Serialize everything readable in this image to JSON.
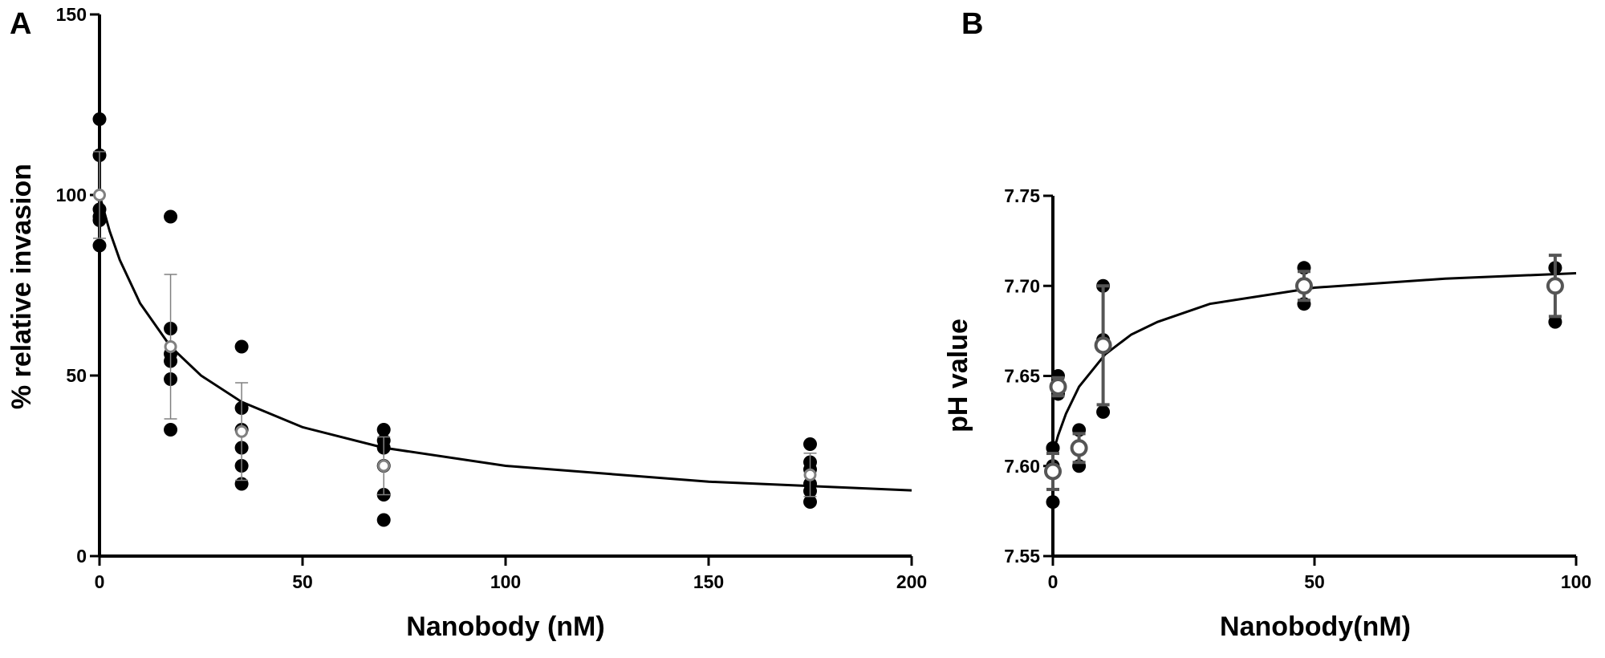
{
  "chart_data": [
    {
      "type": "scatter",
      "panel_label": "A",
      "xlabel": "Nanobody (nM)",
      "ylabel": "% relative invasion",
      "xlim": [
        0,
        200
      ],
      "ylim": [
        0,
        150
      ],
      "xticks": [
        0,
        50,
        100,
        150,
        200
      ],
      "yticks": [
        0,
        50,
        100,
        150
      ],
      "point_color": "#000000",
      "mean_color": "#808080",
      "fit_color": "#000000",
      "points": {
        "x": [
          0,
          0,
          0,
          0,
          0,
          0,
          17.5,
          17.5,
          17.5,
          17.5,
          17.5,
          17.5,
          35,
          35,
          35,
          35,
          35,
          35,
          70,
          70,
          70,
          70,
          70,
          70,
          175,
          175,
          175,
          175,
          175,
          175
        ],
        "y": [
          121,
          111,
          96,
          94,
          93,
          86,
          94,
          63,
          56,
          54,
          49,
          35,
          58,
          41,
          35,
          30,
          25,
          20,
          35,
          32,
          30,
          25,
          17,
          10,
          31,
          26,
          24,
          20,
          18,
          15
        ]
      },
      "means": {
        "x": [
          0,
          17.5,
          35,
          70,
          175
        ],
        "values": [
          100,
          58,
          34.5,
          25,
          22.5
        ],
        "errors": [
          12,
          20,
          13.5,
          8,
          6
        ]
      },
      "fit": {
        "x": [
          0,
          2.5,
          5,
          10,
          17.5,
          25,
          35,
          50,
          70,
          100,
          150,
          200
        ],
        "values": [
          100,
          90,
          82,
          70,
          58,
          50,
          42.7,
          35.7,
          30,
          25,
          20.6,
          18.2
        ]
      }
    },
    {
      "type": "scatter",
      "panel_label": "B",
      "xlabel": "Nanobody(nM)",
      "ylabel": "pH value",
      "xlim": [
        0,
        100
      ],
      "ylim": [
        7.55,
        7.75
      ],
      "xticks": [
        0,
        50,
        100
      ],
      "yticks": [
        7.55,
        {
          "value": 7.6,
          "label": "7.60"
        },
        7.65,
        {
          "value": 7.7,
          "label": "7.70"
        },
        7.75
      ],
      "point_color": "#000000",
      "mean_color": "#555555",
      "fit_color": "#000000",
      "points": {
        "x": [
          0,
          0,
          0,
          0,
          0,
          1,
          1,
          5,
          5,
          5,
          9.6,
          9.6,
          9.6,
          48,
          48,
          48,
          96,
          96
        ],
        "y": [
          7.61,
          7.6,
          7.58,
          7.61,
          7.6,
          7.65,
          7.64,
          7.62,
          7.61,
          7.6,
          7.7,
          7.67,
          7.63,
          7.71,
          7.7,
          7.69,
          7.71,
          7.68
        ]
      },
      "means": {
        "x": [
          0,
          1,
          5,
          9.6,
          48,
          96
        ],
        "values": [
          7.597,
          7.644,
          7.61,
          7.667,
          7.7,
          7.7
        ],
        "errors": [
          0.01,
          0.005,
          0.008,
          0.033,
          0.008,
          0.017
        ]
      },
      "fit": {
        "x": [
          0,
          1,
          2.5,
          5,
          10,
          15,
          20,
          30,
          50,
          75,
          100
        ],
        "values": [
          7.607,
          7.617,
          7.629,
          7.644,
          7.662,
          7.673,
          7.68,
          7.69,
          7.699,
          7.704,
          7.707
        ]
      }
    }
  ]
}
